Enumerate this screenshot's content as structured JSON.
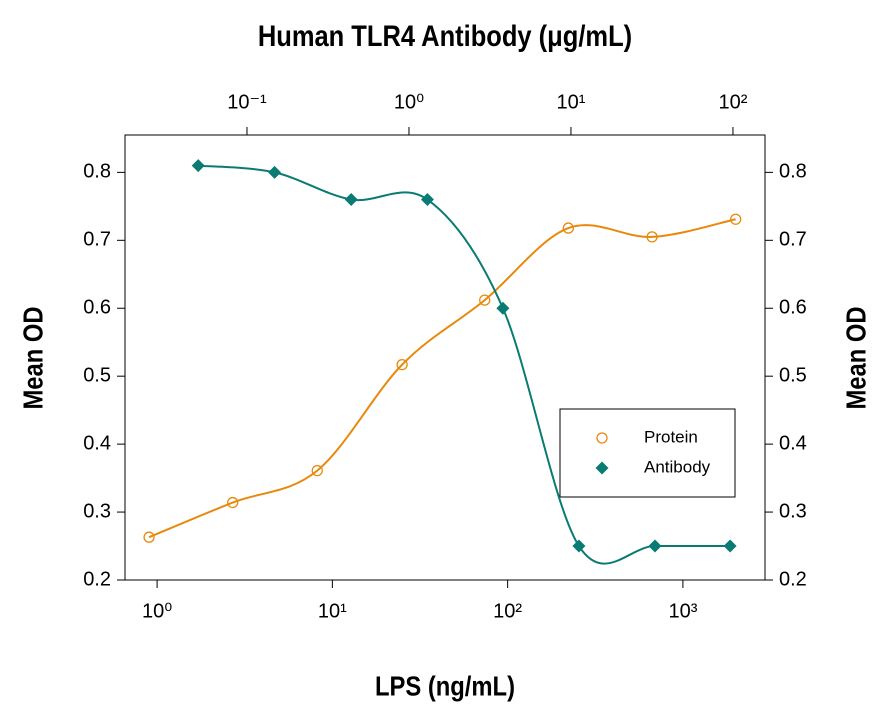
{
  "chart_data": {
    "type": "scatter",
    "title": "Human TLR4 Antibody (μg/mL)",
    "xlabel": "LPS (ng/mL)",
    "ylabel": "Mean OD",
    "y2label": "Mean OD",
    "xscale": "log",
    "x2scale": "log",
    "xlim": [
      0.656,
      2940
    ],
    "xticks": [
      {
        "value": 1,
        "label": "10⁰"
      },
      {
        "value": 10,
        "label": "10¹"
      },
      {
        "value": 100,
        "label": "10²"
      },
      {
        "value": 1000,
        "label": "10³"
      }
    ],
    "x2lim": [
      0.01766,
      157.7
    ],
    "x2ticks": [
      {
        "value": 0.1,
        "label": "10⁻¹"
      },
      {
        "value": 1,
        "label": "10⁰"
      },
      {
        "value": 10,
        "label": "10¹"
      },
      {
        "value": 100,
        "label": "10²"
      }
    ],
    "ylim": [
      0.2,
      0.855
    ],
    "yticks": [
      0.2,
      0.3,
      0.4,
      0.5,
      0.6,
      0.7,
      0.8
    ],
    "y2lim": [
      0.2,
      0.855
    ],
    "y2ticks": [
      0.2,
      0.3,
      0.4,
      0.5,
      0.6,
      0.7,
      0.8
    ],
    "legend": "lower right",
    "series": [
      {
        "name": "Protein",
        "color": "#e8890c",
        "marker": "circle",
        "x": [
          0.9,
          2.7,
          8.2,
          25,
          74,
          222,
          667,
          2000
        ],
        "values": [
          0.263,
          0.314,
          0.361,
          0.517,
          0.612,
          0.718,
          0.705,
          0.731
        ]
      },
      {
        "name": "Antibody",
        "color": "#0a7b73",
        "marker": "diamond",
        "axis": "x2",
        "x": [
          0.05,
          0.148,
          0.44,
          1.3,
          3.8,
          11.2,
          33,
          96
        ],
        "values": [
          0.81,
          0.8,
          0.76,
          0.76,
          0.6,
          0.25,
          0.25,
          0.25
        ]
      }
    ]
  }
}
